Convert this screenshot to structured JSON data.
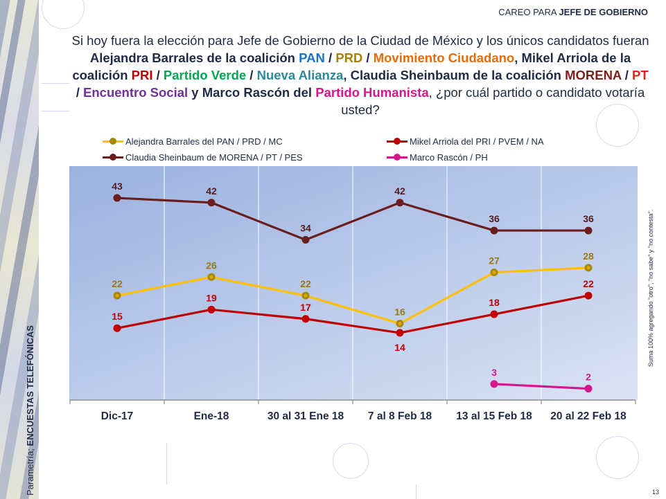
{
  "header": {
    "tag_prefix": "CAREO PARA",
    "tag_bold": "JEFE DE GOBIERNO"
  },
  "question": {
    "segments": [
      {
        "text": "Si hoy fuera la elección para Jefe de Gobierno de la Ciudad de México y los únicos candidatos fueran ",
        "bold": false,
        "color": "#1f2a44"
      },
      {
        "text": "Alejandra Barrales de la coalición ",
        "bold": true,
        "color": "#1f2a44"
      },
      {
        "text": "PAN",
        "bold": true,
        "color": "#1a73c9"
      },
      {
        "text": " / ",
        "bold": true,
        "color": "#1f2a44"
      },
      {
        "text": "PRD",
        "bold": true,
        "color": "#a7800a"
      },
      {
        "text": " / ",
        "bold": true,
        "color": "#1f2a44"
      },
      {
        "text": "Movimiento Ciudadano",
        "bold": true,
        "color": "#e46c0a"
      },
      {
        "text": ", Mikel Arriola de la coalición ",
        "bold": true,
        "color": "#1f2a44"
      },
      {
        "text": "PRI",
        "bold": true,
        "color": "#c00000"
      },
      {
        "text": " / ",
        "bold": true,
        "color": "#1f2a44"
      },
      {
        "text": "Partido Verde",
        "bold": true,
        "color": "#00a651"
      },
      {
        "text": " / ",
        "bold": true,
        "color": "#1f2a44"
      },
      {
        "text": "Nueva Alianza",
        "bold": true,
        "color": "#2a8a9a"
      },
      {
        "text": ", Claudia Sheinbaum de la coalición ",
        "bold": true,
        "color": "#1f2a44"
      },
      {
        "text": "MORENA",
        "bold": true,
        "color": "#7b1f1f"
      },
      {
        "text": " / ",
        "bold": true,
        "color": "#1f2a44"
      },
      {
        "text": "PT",
        "bold": true,
        "color": "#e8201a"
      },
      {
        "text": " / ",
        "bold": true,
        "color": "#1f2a44"
      },
      {
        "text": "Encuentro Social",
        "bold": true,
        "color": "#7030a0"
      },
      {
        "text": " y Marco Rascón del ",
        "bold": true,
        "color": "#1f2a44"
      },
      {
        "text": "Partido Humanista",
        "bold": true,
        "color": "#d6168f"
      },
      {
        "text": ", ¿por cuál partido o candidato votaría usted?",
        "bold": false,
        "color": "#1f2a44"
      }
    ]
  },
  "side_note": "Suma 100% agregando \"otro\", \"no sabe\" y \"no contesta\".",
  "source": {
    "prefix": "Parametría; ",
    "bold": "ENCUESTAS TELEFÓNICAS"
  },
  "page_number": "13",
  "chart_data": {
    "type": "line",
    "title": "",
    "xlabel": "",
    "ylabel": "",
    "ylim": [
      0,
      50
    ],
    "grid": "vertical",
    "legend_position": "top",
    "categories": [
      "Dic-17",
      "Ene-18",
      "30 al 31 Ene 18",
      "7 al 8 Feb 18",
      "13 al 15 Feb 18",
      "20 al 22 Feb 18"
    ],
    "series": [
      {
        "name": "Alejandra Barrales del PAN / PRD / MC",
        "color": "#ffc000",
        "label_color": "#9c7a07",
        "marker_color": "#a7880a",
        "values": [
          22,
          26,
          22,
          16,
          27,
          28
        ],
        "label_pos": [
          "above",
          "above",
          "above",
          "above",
          "above",
          "above"
        ]
      },
      {
        "name": "Mikel Arriola del PRI / PVEM / NA",
        "color": "#c00000",
        "label_color": "#c00000",
        "marker_color": "#c00000",
        "values": [
          15,
          19,
          17,
          14,
          18,
          22
        ],
        "label_pos": [
          "above",
          "above",
          "above",
          "below",
          "above",
          "above"
        ]
      },
      {
        "name": "Claudia Sheinbaum de MORENA / PT / PES",
        "color": "#6b1d1d",
        "label_color": "#5a1a1a",
        "marker_color": "#6b1d1d",
        "values": [
          43,
          42,
          34,
          42,
          36,
          36
        ],
        "label_pos": [
          "above",
          "above",
          "above",
          "above",
          "above",
          "above"
        ]
      },
      {
        "name": "Marco Rascón / PH",
        "color": "#d6168f",
        "label_color": "#d6168f",
        "marker_color": "#d6168f",
        "values": [
          null,
          null,
          null,
          null,
          3,
          2
        ],
        "label_pos": [
          "above",
          "above",
          "above",
          "above",
          "above",
          "above"
        ]
      }
    ]
  }
}
